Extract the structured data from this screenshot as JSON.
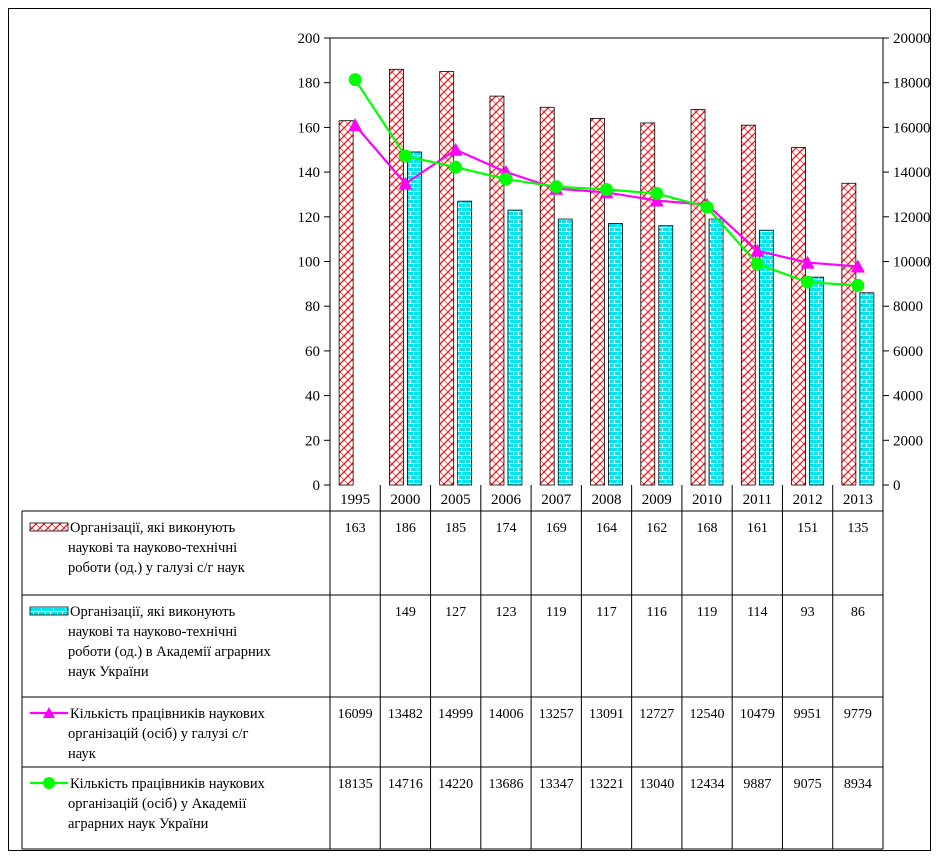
{
  "chart_data": {
    "type": "bar",
    "categories": [
      "1995",
      "2000",
      "2005",
      "2006",
      "2007",
      "2008",
      "2009",
      "2010",
      "2011",
      "2012",
      "2013"
    ],
    "y_left": {
      "ylim": [
        0,
        200
      ],
      "ticks": [
        "0",
        "20",
        "40",
        "60",
        "80",
        "100",
        "120",
        "140",
        "160",
        "180",
        "200"
      ]
    },
    "y_right": {
      "ylim": [
        0,
        20000
      ],
      "ticks": [
        "0",
        "2000",
        "4000",
        "6000",
        "8000",
        "10000",
        "12000",
        "14000",
        "16000",
        "18000",
        "20000"
      ]
    },
    "grid": false,
    "legend_placement": "data-table-below",
    "series": [
      {
        "name": "Організації, які виконують наукові та науково-технічні роботи (од.) у галузі с/г наук",
        "label_lines": [
          "Організації, які виконують",
          "наукові та науково-технічні",
          "роботи (од.) у галузі с/г наук"
        ],
        "kind": "bar",
        "axis": "left",
        "pattern": "red-diagonal-hatch",
        "color": "#ff0000",
        "values": [
          163,
          186,
          185,
          174,
          169,
          164,
          162,
          168,
          161,
          151,
          135
        ],
        "table_values": [
          "163",
          "186",
          "185",
          "174",
          "169",
          "164",
          "162",
          "168",
          "161",
          "151",
          "135"
        ]
      },
      {
        "name": "Організації, які виконують наукові та науково-технічні роботи (од.) в Академії аграрних наук України",
        "label_lines": [
          "Організації, які виконують",
          "наукові та науково-технічні",
          "роботи (од.) в Академії аграрних",
          "наук України"
        ],
        "kind": "bar",
        "axis": "left",
        "pattern": "cyan-brick",
        "color": "#00e5ee",
        "values": [
          null,
          149,
          127,
          123,
          119,
          117,
          116,
          119,
          114,
          93,
          86
        ],
        "table_values": [
          "",
          "149",
          "127",
          "123",
          "119",
          "117",
          "116",
          "119",
          "114",
          "93",
          "86"
        ]
      },
      {
        "name": "Кількість працівників наукових організацій (осіб) у галузі с/г наук",
        "label_lines": [
          "Кількість працівників наукових",
          "організацій (осіб) у галузі с/г",
          "наук"
        ],
        "kind": "line",
        "axis": "right",
        "marker": "triangle",
        "color": "#ff00ff",
        "values": [
          16099,
          13482,
          14999,
          14006,
          13257,
          13091,
          12727,
          12540,
          10479,
          9951,
          9779
        ],
        "table_values": [
          "16099",
          "13482",
          "14999",
          "14006",
          "13257",
          "13091",
          "12727",
          "12540",
          "10479",
          "9951",
          "9779"
        ]
      },
      {
        "name": "Кількість працівників наукових організацій (осіб) у Академії аграрних наук України",
        "label_lines": [
          "Кількість працівників наукових",
          "організацій (осіб) у Академії",
          "аграрних наук України"
        ],
        "kind": "line",
        "axis": "right",
        "marker": "circle",
        "color": "#00ff00",
        "values": [
          18135,
          14716,
          14220,
          13686,
          13347,
          13221,
          13040,
          12434,
          9887,
          9075,
          8934
        ],
        "table_values": [
          "18135",
          "14716",
          "14220",
          "13686",
          "13347",
          "13221",
          "13040",
          "12434",
          "9887",
          "9075",
          "8934"
        ]
      }
    ]
  }
}
